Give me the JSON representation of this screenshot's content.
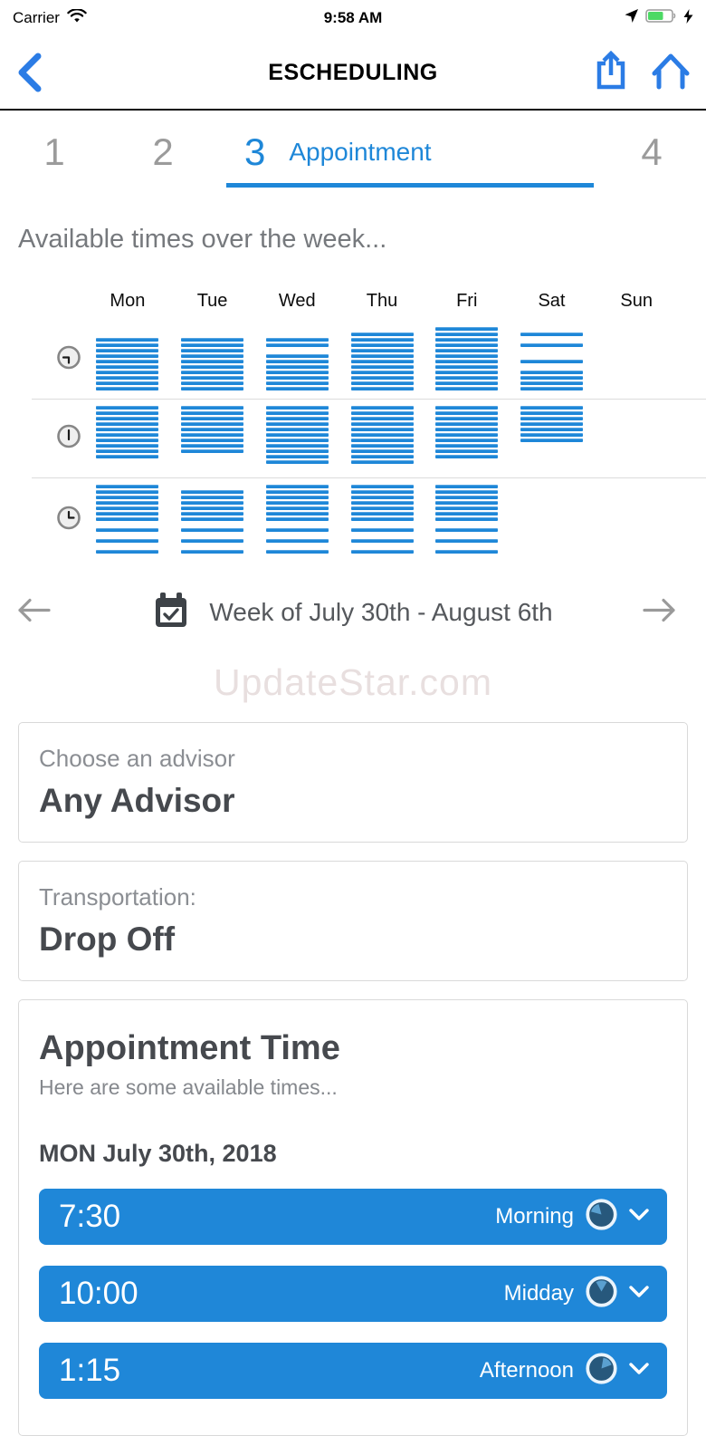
{
  "status_bar": {
    "carrier": "Carrier",
    "time": "9:58 AM"
  },
  "nav": {
    "title": "ESCHEDULING"
  },
  "steps": {
    "items": [
      {
        "number": "1",
        "label": "",
        "active": false
      },
      {
        "number": "2",
        "label": "",
        "active": false
      },
      {
        "number": "3",
        "label": "Appointment",
        "active": true
      },
      {
        "number": "4",
        "label": "",
        "active": false
      }
    ]
  },
  "subtitle": "Available times over the week...",
  "week_grid": {
    "days": [
      "Mon",
      "Tue",
      "Wed",
      "Thu",
      "Fri",
      "Sat",
      "Sun"
    ],
    "rows": [
      {
        "icon": "clock-morning-icon",
        "patterns": [
          [
            0,
            0,
            1,
            1,
            1,
            1,
            1,
            1,
            1,
            1,
            1,
            1
          ],
          [
            0,
            0,
            1,
            1,
            1,
            1,
            1,
            1,
            1,
            1,
            1,
            1
          ],
          [
            0,
            0,
            1,
            1,
            0,
            1,
            1,
            1,
            1,
            1,
            1,
            1
          ],
          [
            0,
            1,
            1,
            1,
            1,
            1,
            1,
            1,
            1,
            1,
            1,
            1
          ],
          [
            1,
            1,
            1,
            1,
            1,
            1,
            1,
            1,
            1,
            1,
            1,
            1
          ],
          [
            0,
            1,
            0,
            1,
            0,
            0,
            1,
            0,
            1,
            1,
            1,
            1
          ],
          [
            0,
            0,
            0,
            0,
            0,
            0,
            0,
            0,
            0,
            0,
            0,
            0
          ]
        ]
      },
      {
        "icon": "clock-midday-icon",
        "patterns": [
          [
            1,
            1,
            1,
            1,
            1,
            1,
            1,
            1,
            1,
            1,
            0,
            0
          ],
          [
            1,
            1,
            1,
            1,
            1,
            1,
            1,
            1,
            1,
            0,
            0,
            0
          ],
          [
            1,
            1,
            1,
            1,
            1,
            1,
            1,
            1,
            1,
            1,
            1,
            0
          ],
          [
            1,
            1,
            1,
            1,
            1,
            1,
            1,
            1,
            1,
            1,
            1,
            0
          ],
          [
            1,
            1,
            1,
            1,
            1,
            1,
            1,
            1,
            1,
            1,
            0,
            0
          ],
          [
            1,
            1,
            1,
            1,
            1,
            1,
            1,
            0,
            0,
            0,
            0,
            0
          ],
          [
            0,
            0,
            0,
            0,
            0,
            0,
            0,
            0,
            0,
            0,
            0,
            0
          ]
        ]
      },
      {
        "icon": "clock-afternoon-icon",
        "patterns": [
          [
            1,
            1,
            1,
            1,
            1,
            1,
            1,
            0,
            1,
            0,
            1,
            0,
            1
          ],
          [
            0,
            1,
            1,
            1,
            1,
            1,
            1,
            0,
            1,
            0,
            1,
            0,
            1
          ],
          [
            1,
            1,
            1,
            1,
            1,
            1,
            1,
            0,
            1,
            0,
            1,
            0,
            1
          ],
          [
            1,
            1,
            1,
            1,
            1,
            1,
            1,
            0,
            1,
            0,
            1,
            0,
            1
          ],
          [
            1,
            1,
            1,
            1,
            1,
            1,
            1,
            0,
            1,
            0,
            1,
            0,
            1
          ],
          [
            0,
            0,
            0,
            0,
            0,
            0,
            0,
            0,
            0,
            0,
            0,
            0,
            0
          ],
          [
            0,
            0,
            0,
            0,
            0,
            0,
            0,
            0,
            0,
            0,
            0,
            0,
            0
          ]
        ]
      }
    ]
  },
  "week_nav": {
    "label": "Week of July 30th - August 6th"
  },
  "watermark": "UpdateStar.com",
  "advisor_card": {
    "label": "Choose an advisor",
    "value": "Any Advisor"
  },
  "transport_card": {
    "label": "Transportation:",
    "value": "Drop Off"
  },
  "appointment_card": {
    "title": "Appointment Time",
    "subtitle": "Here are some available times...",
    "date": "MON July 30th, 2018",
    "slots": [
      {
        "time": "7:30",
        "period": "Morning",
        "icon": "pie-morning-icon",
        "wedge_rotation": -45
      },
      {
        "time": "10:00",
        "period": "Midday",
        "icon": "pie-midday-icon",
        "wedge_rotation": 0
      },
      {
        "time": "1:15",
        "period": "Afternoon",
        "icon": "pie-afternoon-icon",
        "wedge_rotation": 40
      }
    ]
  },
  "colors": {
    "accent_blue": "#1e87d8",
    "nav_icon_blue": "#2b7ce5",
    "battery_green": "#4cd964",
    "bar_blue": "#1e87d8",
    "pie_dark": "#27587c",
    "pie_light": "#5aa0d0"
  }
}
